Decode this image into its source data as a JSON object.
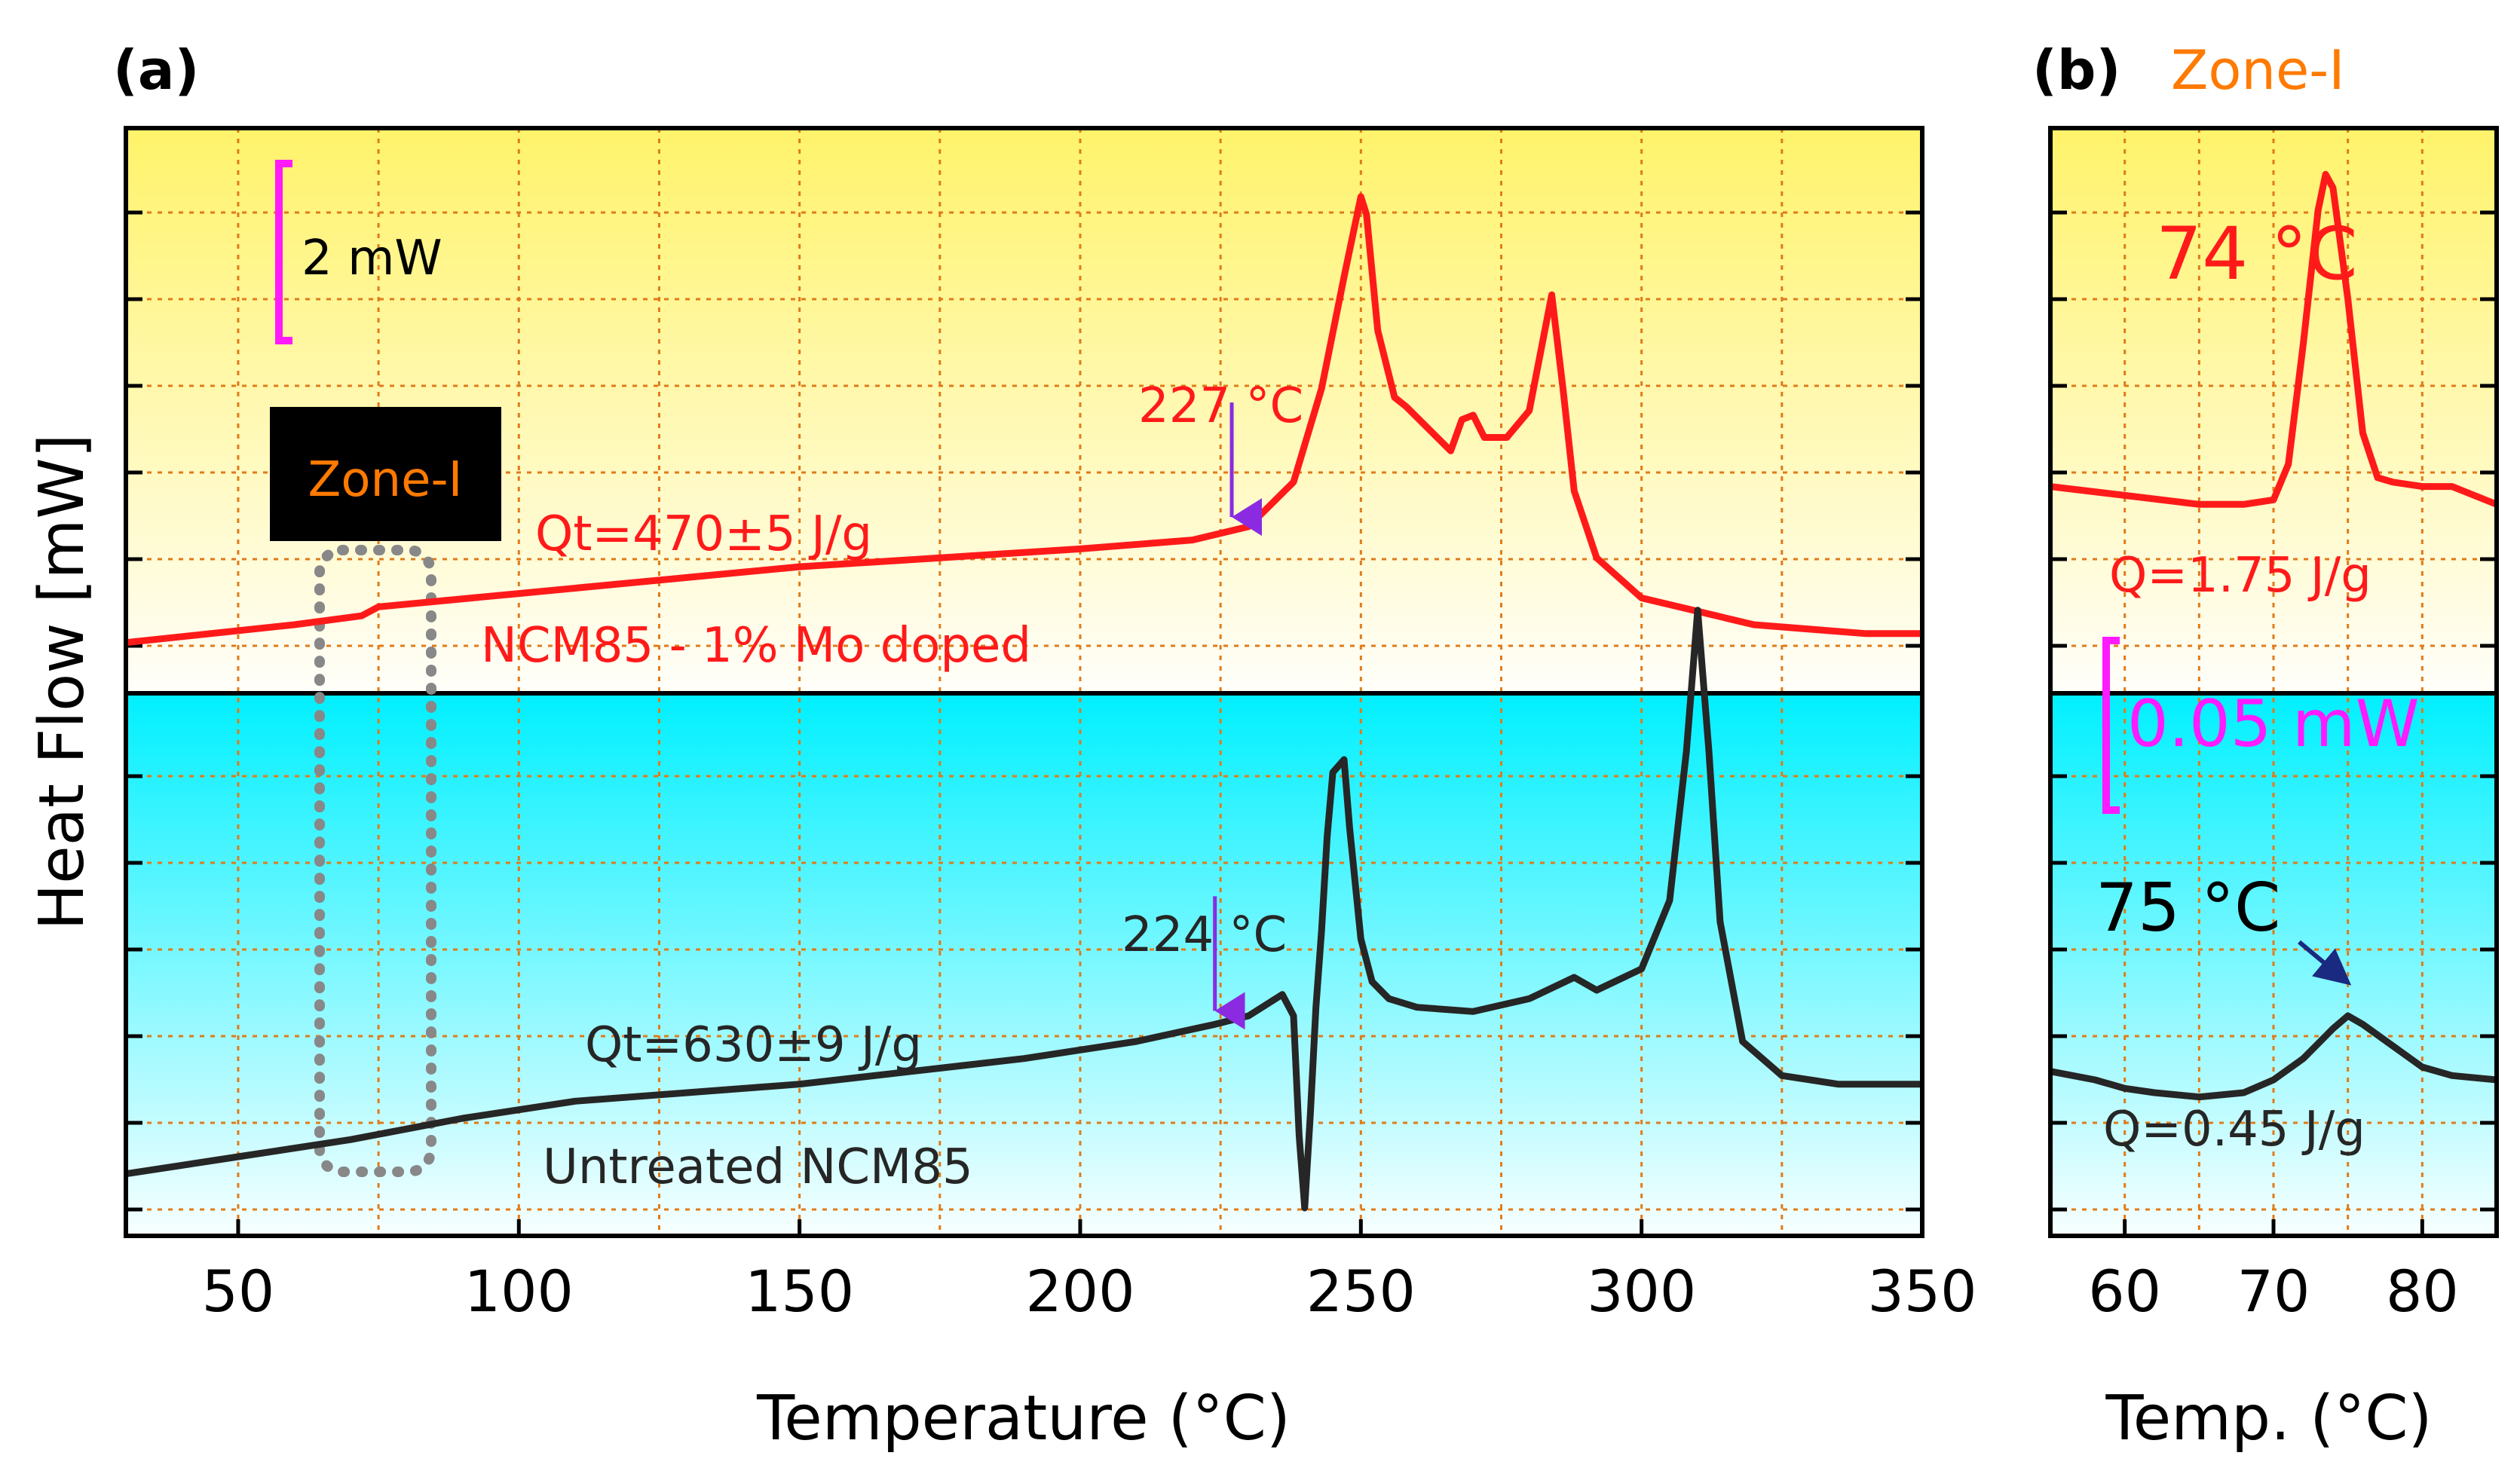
{
  "chart_data": [
    {
      "panel": "(a)",
      "type": "line",
      "xlabel": "Temperature (°C)",
      "ylabel": "Heat Flow [mW]",
      "xlim": [
        30,
        350
      ],
      "xticks": [
        50,
        100,
        150,
        200,
        250,
        300,
        350
      ],
      "tick_labels": [
        "50",
        "100",
        "150",
        "200",
        "250",
        "300",
        "350"
      ],
      "grid": true,
      "scale_bar": "2 mW",
      "zone_box_label": "Zone-I",
      "series": [
        {
          "name": "NCM85 - 1% Mo doped",
          "color": "#ff1a1a",
          "area": "top",
          "ylim": [
            0,
            12
          ],
          "x": [
            30,
            60,
            72,
            75,
            100,
            150,
            200,
            220,
            230,
            238,
            243,
            247,
            250,
            251,
            253,
            256,
            258,
            262,
            266,
            268,
            270,
            272,
            276,
            280,
            282,
            284,
            286,
            288,
            292,
            300,
            320,
            340,
            350
          ],
          "y": [
            0.8,
            1.2,
            1.4,
            1.6,
            1.9,
            2.5,
            2.9,
            3.1,
            3.4,
            4.4,
            6.5,
            9.0,
            10.8,
            10.4,
            7.8,
            6.3,
            6.1,
            5.6,
            5.1,
            5.8,
            5.9,
            5.4,
            5.4,
            6.0,
            7.3,
            8.6,
            6.5,
            4.2,
            2.7,
            1.8,
            1.2,
            1.0,
            1.0
          ],
          "onset_label": "227 °C",
          "onset_x": 227,
          "heat_label": "Qt=470±5 J/g"
        },
        {
          "name": "Untreated NCM85",
          "color": "#262626",
          "area": "bottom",
          "ylim": [
            0,
            12
          ],
          "x": [
            30,
            50,
            70,
            90,
            110,
            130,
            150,
            170,
            190,
            210,
            224,
            230,
            236,
            238,
            239,
            240,
            241,
            242,
            243,
            244,
            245,
            247,
            248,
            250,
            252,
            255,
            260,
            270,
            280,
            288,
            292,
            300,
            305,
            308,
            310,
            312,
            314,
            318,
            325,
            335,
            350
          ],
          "y": [
            1.1,
            1.5,
            1.9,
            2.4,
            2.8,
            3.0,
            3.2,
            3.5,
            3.8,
            4.2,
            4.6,
            4.8,
            5.3,
            4.8,
            2.0,
            0.3,
            2.5,
            5.0,
            6.8,
            9.0,
            10.5,
            10.8,
            9.2,
            6.6,
            5.6,
            5.2,
            5.0,
            4.9,
            5.2,
            5.7,
            5.4,
            5.9,
            7.5,
            11.0,
            14.3,
            11.0,
            7.0,
            4.2,
            3.4,
            3.2,
            3.2
          ],
          "onset_label": "224 °C",
          "onset_x": 224,
          "heat_label": "Qt=630±9 J/g"
        }
      ]
    },
    {
      "panel": "(b)",
      "title": "Zone-I",
      "type": "line",
      "xlabel": "Temp. (°C)",
      "xlim": [
        55,
        85
      ],
      "xticks": [
        60,
        70,
        80
      ],
      "tick_labels": [
        "60",
        "70",
        "80"
      ],
      "grid": true,
      "scale_bar": "0.05 mW",
      "series": [
        {
          "name": "NCM85 - 1% Mo doped (Zone-I)",
          "color": "#ff1a1a",
          "area": "top",
          "ylim": [
            0,
            12
          ],
          "x": [
            55,
            60,
            65,
            68,
            70,
            71,
            72,
            73,
            73.5,
            74,
            75,
            76,
            77,
            78,
            80,
            82,
            85
          ],
          "y": [
            4.3,
            4.1,
            3.9,
            3.9,
            4.0,
            4.8,
            7.5,
            10.5,
            11.3,
            11.0,
            8.5,
            5.5,
            4.5,
            4.4,
            4.3,
            4.3,
            3.9
          ],
          "peak_label": "74 °C",
          "heat_label": "Q=1.75 J/g"
        },
        {
          "name": "Untreated NCM85 (Zone-I)",
          "color": "#262626",
          "area": "bottom",
          "ylim": [
            0,
            12
          ],
          "x": [
            55,
            58,
            60,
            62,
            65,
            68,
            70,
            72,
            74,
            75,
            76,
            78,
            80,
            82,
            85
          ],
          "y": [
            3.5,
            3.3,
            3.1,
            3.0,
            2.9,
            3.0,
            3.3,
            3.8,
            4.5,
            4.8,
            4.6,
            4.1,
            3.6,
            3.4,
            3.3
          ],
          "peak_label": "75 °C",
          "heat_label": "Q=0.45 J/g"
        }
      ]
    }
  ],
  "colors": {
    "top_band": "#fff36a",
    "bottom_band": "#00f0ff",
    "grid": "#e07b1a",
    "scale_bar": "#ff1aff",
    "onset_arrow": "#8a2be2",
    "peak_arrow": "#1a2a80",
    "zone_label": "#ff7a00",
    "zone_box": "#888888"
  }
}
